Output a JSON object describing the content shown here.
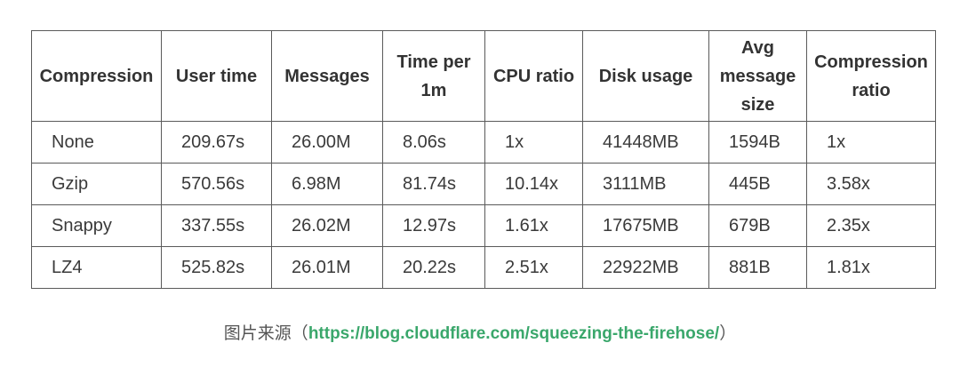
{
  "table": {
    "headers": [
      "Compression",
      "User time",
      "Messages",
      "Time per 1m",
      "CPU ratio",
      "Disk usage",
      "Avg message size",
      "Compression ratio"
    ],
    "rows": [
      [
        "None",
        "209.67s",
        "26.00M",
        "8.06s",
        "1x",
        "41448MB",
        "1594B",
        "1x"
      ],
      [
        "Gzip",
        "570.56s",
        "6.98M",
        "81.74s",
        "10.14x",
        "3111MB",
        "445B",
        "3.58x"
      ],
      [
        "Snappy",
        "337.55s",
        "26.02M",
        "12.97s",
        "1.61x",
        "17675MB",
        "679B",
        "2.35x"
      ],
      [
        "LZ4",
        "525.82s",
        "26.01M",
        "20.22s",
        "2.51x",
        "22922MB",
        "881B",
        "1.81x"
      ]
    ]
  },
  "caption": {
    "prefix": "图片来源（",
    "url": "https://blog.cloudflare.com/squeezing-the-firehose/",
    "suffix": "）",
    "url_color": "#3aa76b"
  }
}
